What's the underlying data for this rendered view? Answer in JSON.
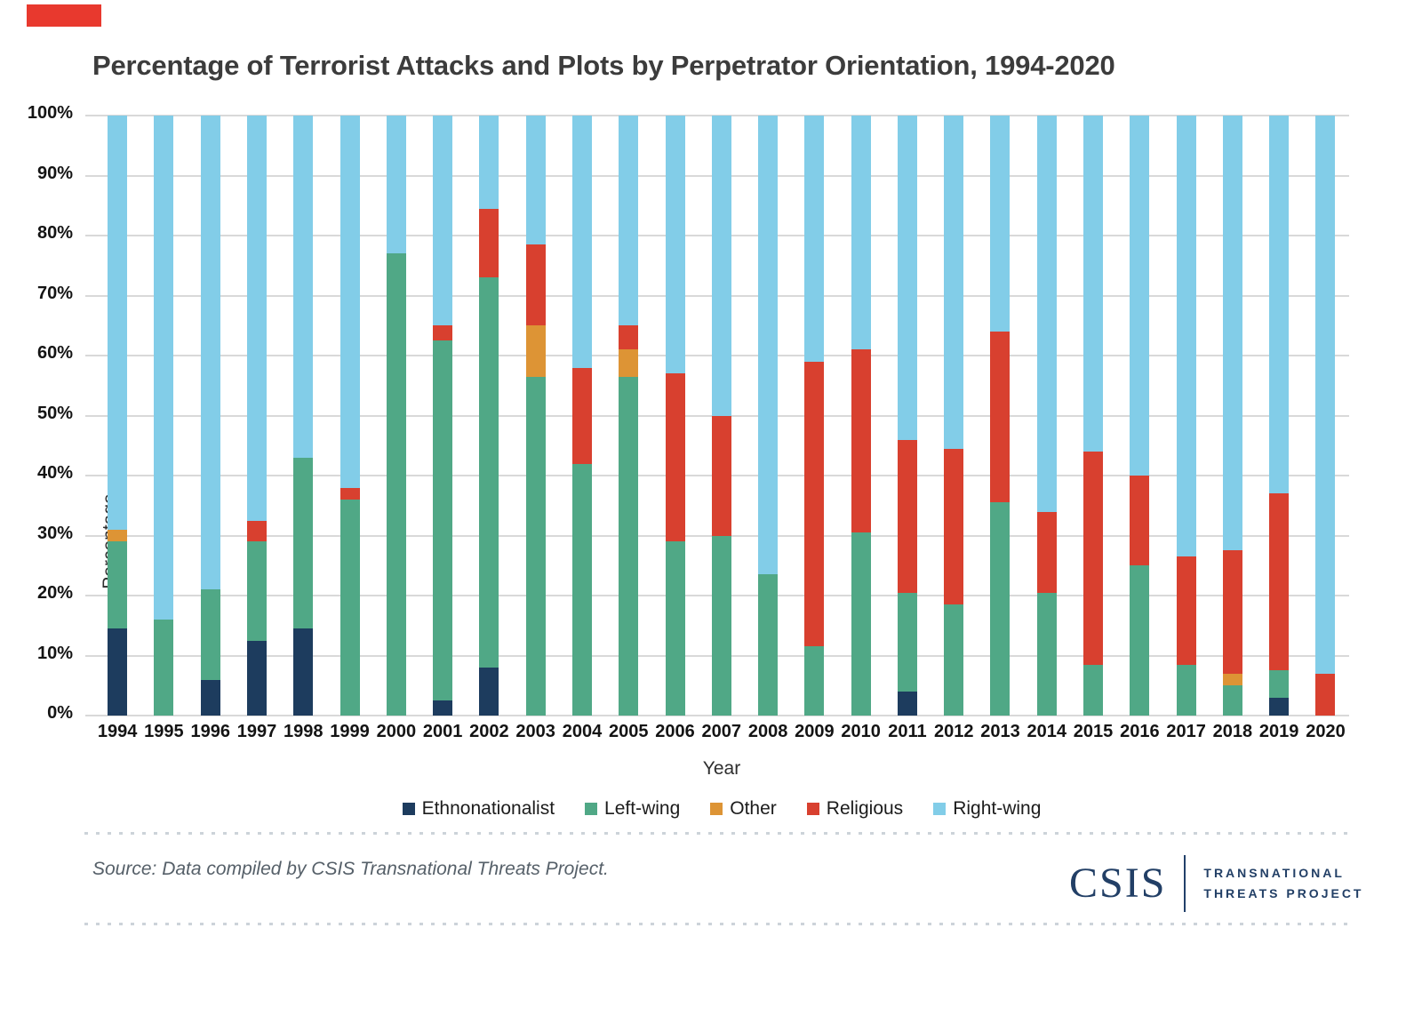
{
  "accent_color": "#e8392e",
  "title": "Percentage of Terrorist Attacks and Plots by Perpetrator Orientation, 1994-2020",
  "chart_data": {
    "type": "bar",
    "stacked": true,
    "title": "Percentage of Terrorist Attacks and Plots by Perpetrator Orientation, 1994-2020",
    "xlabel": "Year",
    "ylabel": "Percentage",
    "ylim": [
      0,
      100
    ],
    "grid": true,
    "legend_position": "bottom",
    "yticks": [
      "0%",
      "10%",
      "20%",
      "30%",
      "40%",
      "50%",
      "60%",
      "70%",
      "80%",
      "90%",
      "100%"
    ],
    "categories": [
      "1994",
      "1995",
      "1996",
      "1997",
      "1998",
      "1999",
      "2000",
      "2001",
      "2002",
      "2003",
      "2004",
      "2005",
      "2006",
      "2007",
      "2008",
      "2009",
      "2010",
      "2011",
      "2012",
      "2013",
      "2014",
      "2015",
      "2016",
      "2017",
      "2018",
      "2019",
      "2020"
    ],
    "series": [
      {
        "name": "Ethnonationalist",
        "color": "#1d3c5e",
        "values": [
          14.5,
          0,
          6,
          12.5,
          14.5,
          0,
          0,
          2.5,
          8,
          0,
          0,
          0,
          0,
          0,
          0,
          0,
          0,
          4,
          0,
          0,
          0,
          0,
          0,
          0,
          0,
          3,
          0
        ]
      },
      {
        "name": "Left-wing",
        "color": "#50a886",
        "values": [
          14.5,
          16,
          15,
          16.5,
          28.5,
          36,
          77,
          60,
          65,
          56.5,
          42,
          56.5,
          29,
          30,
          23.5,
          11.5,
          30.5,
          16.5,
          18.5,
          35.5,
          20.5,
          8.5,
          25,
          8.5,
          5,
          4.5,
          0
        ]
      },
      {
        "name": "Other",
        "color": "#dd9435",
        "values": [
          2,
          0,
          0,
          0,
          0,
          0,
          0,
          0,
          0,
          8.5,
          0,
          4.5,
          0,
          0,
          0,
          0,
          0,
          0,
          0,
          0,
          0,
          0,
          0,
          0,
          2,
          0,
          0
        ]
      },
      {
        "name": "Religious",
        "color": "#d8402f",
        "values": [
          0,
          0,
          0,
          3.5,
          0,
          2,
          0,
          2.5,
          11.5,
          13.5,
          16,
          4,
          28,
          20,
          0,
          47.5,
          30.5,
          25.5,
          26,
          28.5,
          13.5,
          35.5,
          15,
          18,
          20.5,
          29.5,
          7
        ]
      },
      {
        "name": "Right-wing",
        "color": "#82cde8",
        "values": [
          69,
          84,
          79,
          67.5,
          57,
          62,
          23,
          35,
          15.5,
          21.5,
          42,
          35,
          43,
          50,
          76.5,
          41,
          39,
          54,
          55.5,
          36,
          66,
          56,
          60,
          73.5,
          72.5,
          63,
          93
        ]
      }
    ]
  },
  "source": "Source: Data compiled by CSIS Transnational Threats Project.",
  "logo": {
    "name": "CSIS",
    "line1": "TRANSNATIONAL",
    "line2": "THREATS PROJECT"
  }
}
